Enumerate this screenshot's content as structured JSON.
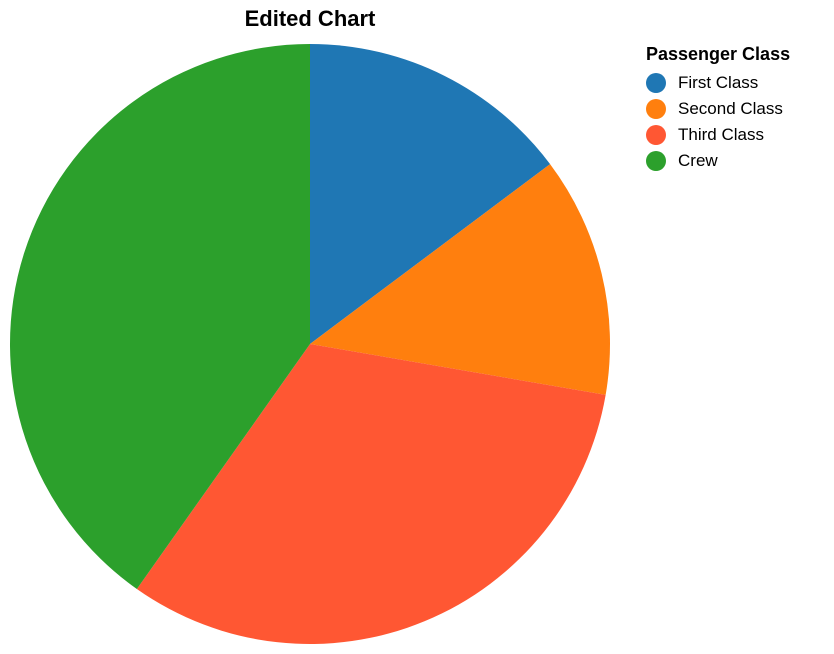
{
  "chart_data": {
    "type": "pie",
    "title": "Edited Chart",
    "legend_title": "Passenger Class",
    "legend_position": "top-right",
    "categories": [
      "First Class",
      "Second Class",
      "Third Class",
      "Crew"
    ],
    "values": [
      325,
      285,
      706,
      885
    ],
    "colors": [
      "#1f77b4",
      "#ff7f0e",
      "#ff5733",
      "#2ca02c"
    ]
  }
}
